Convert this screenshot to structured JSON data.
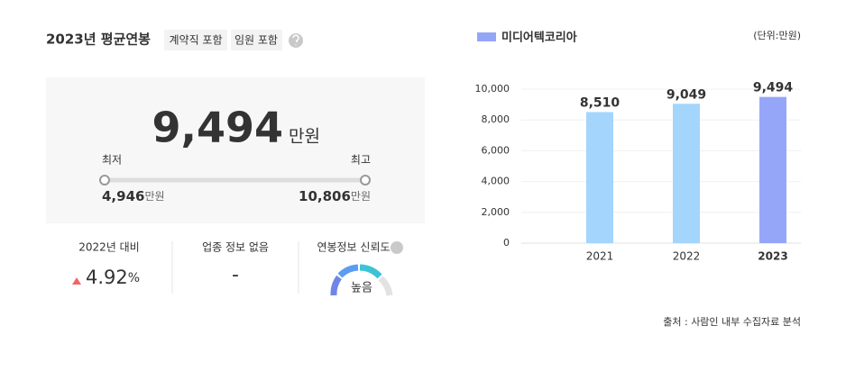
{
  "header": {
    "title": "2023년 평균연봉",
    "tags": [
      "계약직 포함",
      "임원 포함"
    ]
  },
  "summary": {
    "value": "9,494",
    "unit": "만원",
    "min_label": "최저",
    "max_label": "최고",
    "min_value": "4,946",
    "min_unit": "만원",
    "max_value": "10,806",
    "max_unit": "만원"
  },
  "stats": [
    {
      "label": "2022년 대비",
      "value": "4.92",
      "unit": "%"
    },
    {
      "label": "업종 정보 없음",
      "value": "-"
    },
    {
      "label": "연봉정보 신뢰도",
      "value": "높음"
    }
  ],
  "chart_data": {
    "type": "bar",
    "unit_note": "(단위:만원)",
    "categories": [
      "2021",
      "2022",
      "2023"
    ],
    "series": [
      {
        "name": "미디어텍코리아",
        "color": "#95a6f9",
        "colors": [
          "#a3d5fd",
          "#a3d5fd",
          "#95a6f9"
        ],
        "values": [
          8510,
          9049,
          9494
        ],
        "value_labels": [
          "8,510",
          "9,049",
          "9,494"
        ]
      }
    ],
    "ylim": [
      0,
      10000
    ],
    "yticks": [
      0,
      {
        "value": 2000,
        "label": "2,000"
      },
      {
        "value": 4000,
        "label": "4,000"
      },
      {
        "value": 6000,
        "label": "6,000"
      },
      {
        "value": 8000,
        "label": "8,000"
      },
      {
        "value": 10000,
        "label": "10,000"
      }
    ],
    "grid": true
  },
  "source": "출처 : 사람인 내부 수집자료 분석"
}
